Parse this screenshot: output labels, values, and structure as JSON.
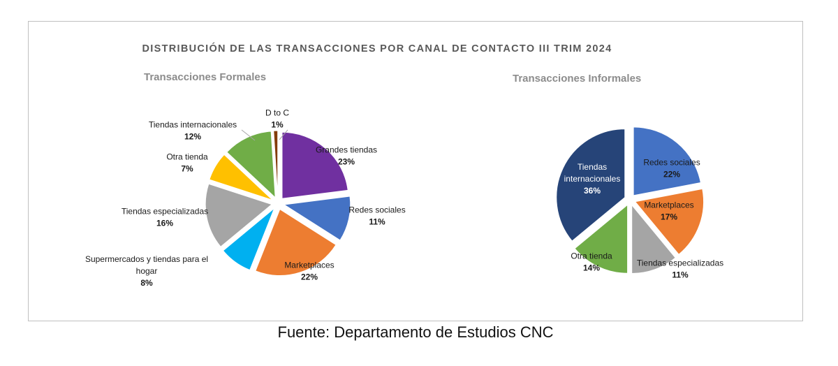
{
  "main_title": "DISTRIBUCIÓN DE LAS TRANSACCIONES  POR CANAL DE CONTACTO III TRIM 2024",
  "source_note": "Fuente: Departamento de Estudios CNC",
  "chart_data": [
    {
      "type": "pie",
      "title": "Transacciones Formales",
      "slices": [
        {
          "label": "Grandes tiendas",
          "value": 23,
          "value_label": "23%",
          "color": "#7030a0"
        },
        {
          "label": "Redes sociales",
          "value": 11,
          "value_label": "11%",
          "color": "#4472c4"
        },
        {
          "label": "Marketplaces",
          "value": 22,
          "value_label": "22%",
          "color": "#ed7d31"
        },
        {
          "label": "Supermercados y tiendas para el hogar",
          "value": 8,
          "value_label": "8%",
          "color": "#00b0f0"
        },
        {
          "label": "Tiendas especializadas",
          "value": 16,
          "value_label": "16%",
          "color": "#a5a5a5"
        },
        {
          "label": "Otra tienda",
          "value": 7,
          "value_label": "7%",
          "color": "#ffc000"
        },
        {
          "label": "Tiendas internacionales",
          "value": 12,
          "value_label": "12%",
          "color": "#70ad47"
        },
        {
          "label": "D to C",
          "value": 1,
          "value_label": "1%",
          "color": "#843c0c"
        }
      ]
    },
    {
      "type": "pie",
      "title": "Transacciones Informales",
      "slices": [
        {
          "label": "Redes sociales",
          "value": 22,
          "value_label": "22%",
          "color": "#4472c4"
        },
        {
          "label": "Marketplaces",
          "value": 17,
          "value_label": "17%",
          "color": "#ed7d31"
        },
        {
          "label": "Tiendas especializadas",
          "value": 11,
          "value_label": "11%",
          "color": "#a5a5a5"
        },
        {
          "label": "Otra tienda",
          "value": 14,
          "value_label": "14%",
          "color": "#70ad47"
        },
        {
          "label": "Tiendas internacionales",
          "value": 36,
          "value_label": "36%",
          "color": "#264478"
        }
      ]
    }
  ]
}
